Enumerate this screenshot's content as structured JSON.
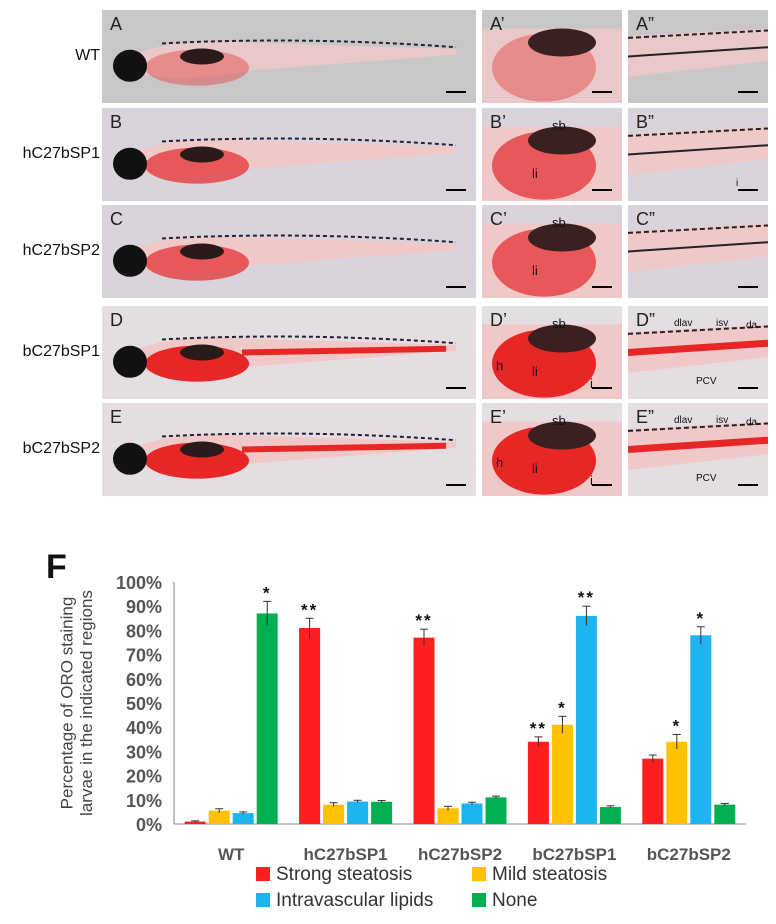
{
  "rows": [
    {
      "label": "WT",
      "panels": [
        {
          "letter": "A",
          "anno": []
        },
        {
          "letter": "A’",
          "anno": []
        },
        {
          "letter": "A”",
          "anno": []
        }
      ],
      "stain": 0.1
    },
    {
      "label": "hC27bSP1",
      "panels": [
        {
          "letter": "B",
          "anno": []
        },
        {
          "letter": "B’",
          "anno": [
            "sb",
            "li"
          ]
        },
        {
          "letter": "B”",
          "anno": [
            "i"
          ]
        }
      ],
      "stain": 0.6
    },
    {
      "label": "hC27bSP2",
      "panels": [
        {
          "letter": "C",
          "anno": []
        },
        {
          "letter": "C’",
          "anno": [
            "sb",
            "li"
          ]
        },
        {
          "letter": "C”",
          "anno": []
        }
      ],
      "stain": 0.6
    },
    {
      "label": "bC27bSP1",
      "panels": [
        {
          "letter": "D",
          "anno": []
        },
        {
          "letter": "D’",
          "anno": [
            "sb",
            "h",
            "li",
            "i"
          ]
        },
        {
          "letter": "D”",
          "anno": [
            "dlav",
            "isv",
            "da",
            "PCV"
          ]
        }
      ],
      "stain": 1.0
    },
    {
      "label": "bC27bSP2",
      "panels": [
        {
          "letter": "E",
          "anno": []
        },
        {
          "letter": "E’",
          "anno": [
            "sb",
            "h",
            "li",
            "i"
          ]
        },
        {
          "letter": "E”",
          "anno": [
            "dlav",
            "isv",
            "da",
            "PCV"
          ]
        }
      ],
      "stain": 1.0
    }
  ],
  "panel_f": {
    "letter": "F"
  },
  "chart_data": {
    "type": "bar",
    "ylabel": "Percentage of ORO staining larvae in the indicated regions",
    "ylim": [
      0,
      100
    ],
    "yticks": [
      "0%",
      "10%",
      "20%",
      "30%",
      "40%",
      "50%",
      "60%",
      "70%",
      "80%",
      "90%",
      "100%"
    ],
    "categories": [
      "WT",
      "hC27bSP1",
      "hC27bSP2",
      "bC27bSP1",
      "bC27bSP2"
    ],
    "series": [
      {
        "name": "Strong steatosis",
        "color": "#ff1f1f",
        "values": [
          1,
          81,
          77,
          34,
          27
        ],
        "errors": [
          0.3,
          4,
          3.5,
          2,
          1.5
        ],
        "sig": [
          "",
          "**",
          "**",
          "**",
          ""
        ]
      },
      {
        "name": "Mild steatosis",
        "color": "#ffc000",
        "values": [
          5.5,
          8,
          6.5,
          41,
          34
        ],
        "errors": [
          0.8,
          0.8,
          0.8,
          3.5,
          3
        ],
        "sig": [
          "",
          "",
          "",
          "*",
          "*"
        ]
      },
      {
        "name": "Intravascular lipids",
        "color": "#1eb4f0",
        "values": [
          4.5,
          9.3,
          8.5,
          86,
          78
        ],
        "errors": [
          0.5,
          0.5,
          0.5,
          4,
          3.5
        ],
        "sig": [
          "",
          "",
          "",
          "**",
          "*"
        ]
      },
      {
        "name": "None",
        "color": "#00b050",
        "values": [
          87,
          9.2,
          11,
          7,
          8
        ],
        "errors": [
          5,
          0.5,
          0.5,
          0.5,
          0.5
        ],
        "sig": [
          "*",
          "",
          "",
          "",
          ""
        ]
      }
    ],
    "legend_position": "bottom",
    "grid": false
  }
}
